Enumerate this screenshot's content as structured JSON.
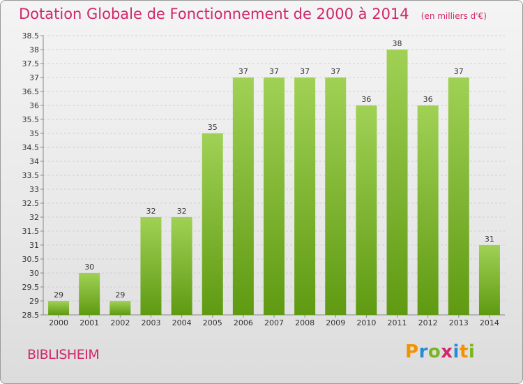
{
  "header": {
    "title": "Dotation Globale de Fonctionnement de 2000 à 2014",
    "subtitle": "(en milliers d'€)"
  },
  "footer": {
    "commune": "BIBLISHEIM",
    "logo": "Proxiti"
  },
  "colors": {
    "accent": "#d0286b",
    "bar_top": "#a0d155",
    "bar_bottom": "#5f9a12"
  },
  "chart_data": {
    "type": "bar",
    "categories": [
      "2000",
      "2001",
      "2002",
      "2003",
      "2004",
      "2005",
      "2006",
      "2007",
      "2008",
      "2009",
      "2010",
      "2011",
      "2012",
      "2013",
      "2014"
    ],
    "values": [
      29,
      30,
      29,
      32,
      32,
      35,
      37,
      37,
      37,
      37,
      36,
      38,
      36,
      37,
      31
    ],
    "ylim": [
      28.5,
      38.5
    ],
    "yticks": [
      "28.5",
      "29",
      "29.5",
      "30",
      "30.5",
      "31",
      "31.5",
      "32",
      "32.5",
      "33",
      "33.5",
      "34",
      "34.5",
      "35",
      "35.5",
      "36",
      "36.5",
      "37",
      "37.5",
      "38",
      "38.5"
    ],
    "grid": true
  }
}
